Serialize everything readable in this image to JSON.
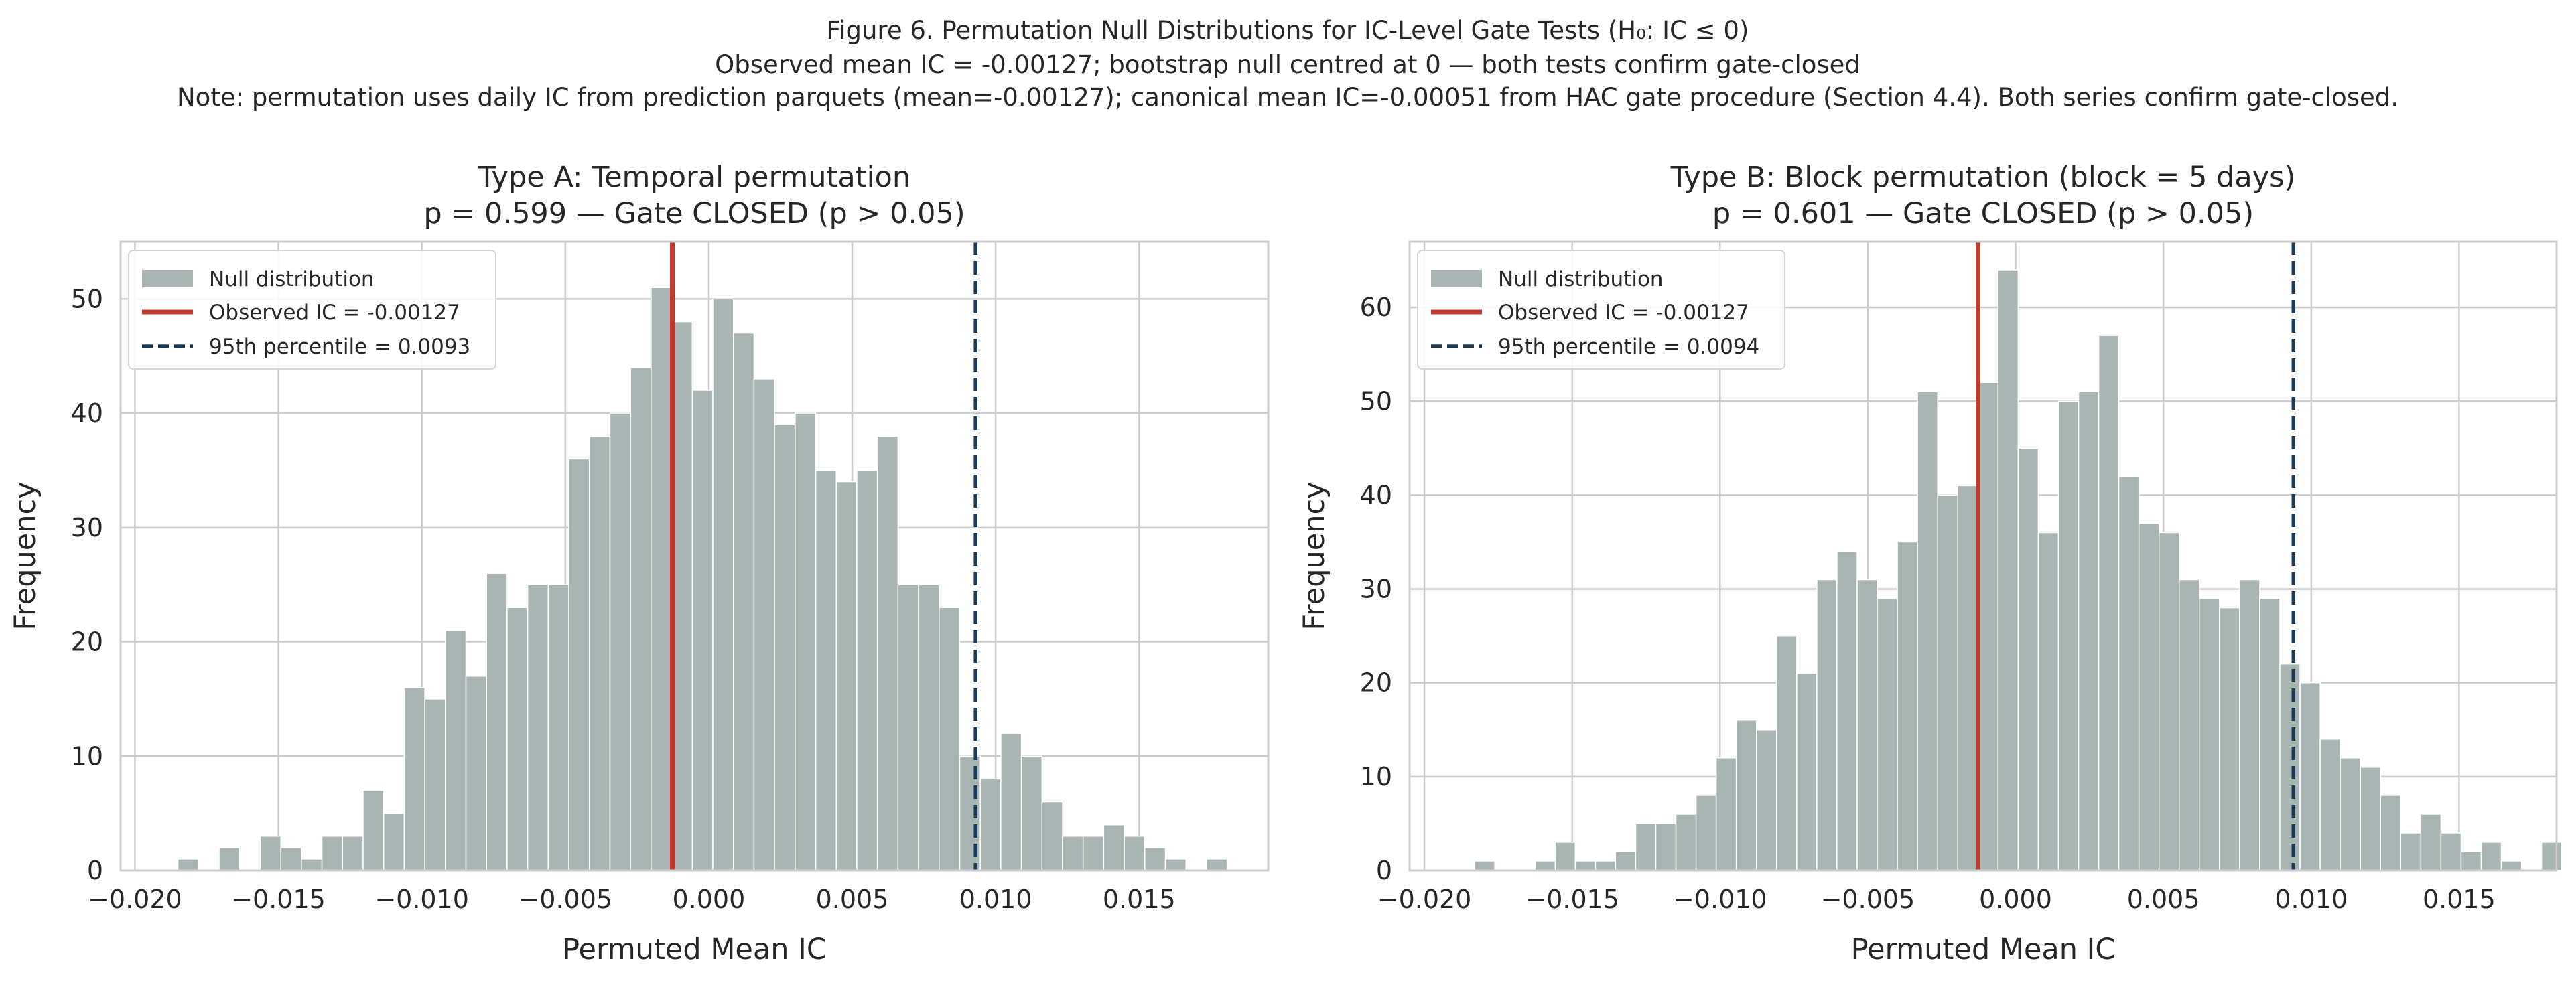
{
  "figure": {
    "suptitle_lines": [
      "Figure 6. Permutation Null Distributions for IC-Level Gate Tests (H₀: IC ≤ 0)",
      "Observed mean IC = -0.00127; bootstrap null centred at 0 — both tests confirm gate-closed",
      "Note: permutation uses daily IC from prediction parquets (mean=-0.00127); canonical mean IC=-0.00051 from HAC gate procedure (Section 4.4). Both series confirm gate-closed."
    ]
  },
  "colors": {
    "bar_fill": "#a8b5b3",
    "bar_edge": "#ffffff",
    "observed_line": "#c0392b",
    "threshold_line": "#1b3a57",
    "grid": "#cccccc",
    "spine": "#cccccc",
    "text": "#262626"
  },
  "chart_data": [
    {
      "type": "bar",
      "title_lines": [
        "Type A: Temporal permutation",
        "p = 0.599 — Gate CLOSED  (p > 0.05)"
      ],
      "xlabel": "Permuted Mean IC",
      "ylabel": "Frequency",
      "xlim": [
        -0.0205,
        0.0195
      ],
      "ylim": [
        0,
        55
      ],
      "xticks": [
        -0.02,
        -0.015,
        -0.01,
        -0.005,
        0.0,
        0.005,
        0.01,
        0.015
      ],
      "xtick_labels": [
        "−0.020",
        "−0.015",
        "−0.010",
        "−0.005",
        "0.000",
        "0.005",
        "0.010",
        "0.015"
      ],
      "yticks": [
        0,
        10,
        20,
        30,
        40,
        50
      ],
      "ytick_labels": [
        "0",
        "10",
        "20",
        "30",
        "40",
        "50"
      ],
      "grid": true,
      "legend_position": "top-left",
      "bin_start": -0.0185,
      "bin_width": 0.000717,
      "counts": [
        1,
        0,
        2,
        0,
        3,
        2,
        1,
        3,
        3,
        7,
        5,
        16,
        15,
        21,
        17,
        26,
        23,
        25,
        25,
        36,
        38,
        40,
        44,
        51,
        48,
        42,
        50,
        47,
        43,
        39,
        40,
        35,
        34,
        35,
        38,
        25,
        25,
        23,
        10,
        8,
        12,
        10,
        6,
        3,
        3,
        4,
        3,
        2,
        1,
        0,
        1
      ],
      "observed_ic": -0.00127,
      "percentile_95": 0.0093,
      "legend": [
        {
          "kind": "patch",
          "label": "Null distribution"
        },
        {
          "kind": "line",
          "label": "Observed IC = -0.00127"
        },
        {
          "kind": "dashed",
          "label": "95th percentile = 0.0093"
        }
      ]
    },
    {
      "type": "bar",
      "title_lines": [
        "Type B: Block permutation (block = 5 days)",
        "p = 0.601 — Gate CLOSED  (p > 0.05)"
      ],
      "xlabel": "Permuted Mean IC",
      "ylabel": "Frequency",
      "xlim": [
        -0.0205,
        0.0183
      ],
      "ylim": [
        0,
        67
      ],
      "xticks": [
        -0.02,
        -0.015,
        -0.01,
        -0.005,
        0.0,
        0.005,
        0.01,
        0.015
      ],
      "xtick_labels": [
        "−0.020",
        "−0.015",
        "−0.010",
        "−0.005",
        "0.000",
        "0.005",
        "0.010",
        "0.015"
      ],
      "yticks": [
        0,
        10,
        20,
        30,
        40,
        50,
        60
      ],
      "ytick_labels": [
        "0",
        "10",
        "20",
        "30",
        "40",
        "50",
        "60"
      ],
      "grid": true,
      "legend_position": "top-left",
      "bin_start": -0.0183,
      "bin_width": 0.000681,
      "counts": [
        1,
        0,
        0,
        1,
        3,
        1,
        1,
        2,
        5,
        5,
        6,
        8,
        12,
        16,
        15,
        25,
        21,
        31,
        34,
        31,
        29,
        35,
        51,
        40,
        41,
        52,
        64,
        45,
        36,
        50,
        51,
        57,
        42,
        37,
        36,
        31,
        29,
        28,
        31,
        29,
        22,
        20,
        14,
        12,
        11,
        8,
        4,
        6,
        4,
        2,
        3,
        1,
        0,
        3
      ],
      "observed_ic": -0.00127,
      "percentile_95": 0.0094,
      "legend": [
        {
          "kind": "patch",
          "label": "Null distribution"
        },
        {
          "kind": "line",
          "label": "Observed IC = -0.00127"
        },
        {
          "kind": "dashed",
          "label": "95th percentile = 0.0094"
        }
      ]
    }
  ]
}
